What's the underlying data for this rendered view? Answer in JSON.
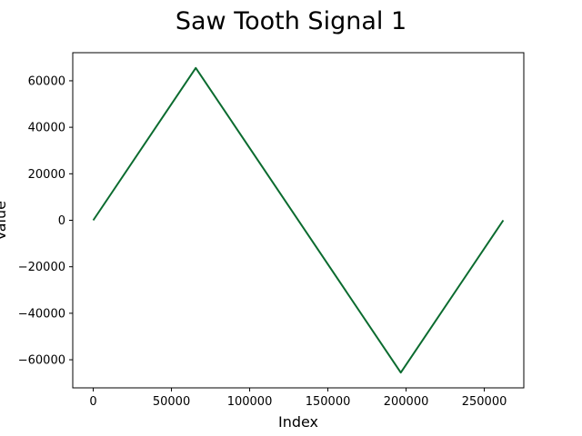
{
  "chart_data": {
    "type": "line",
    "title": "Saw Tooth Signal 1",
    "xlabel": "Index",
    "ylabel": "Value",
    "xlim": [
      -13107,
      275251
    ],
    "ylim": [
      -72089,
      72089
    ],
    "xticks": [
      0,
      50000,
      100000,
      150000,
      200000,
      250000
    ],
    "yticks": [
      -60000,
      -40000,
      -20000,
      0,
      20000,
      40000,
      60000
    ],
    "xtick_labels": [
      "0",
      "50000",
      "100000",
      "150000",
      "200000",
      "250000"
    ],
    "ytick_labels": [
      "−60000",
      "−40000",
      "−20000",
      "0",
      "20000",
      "40000",
      "60000"
    ],
    "grid": false,
    "series": [
      {
        "color": "#0b6b2f",
        "x": [
          0,
          65536,
          196608,
          262144
        ],
        "y": [
          0,
          65536,
          -65536,
          0
        ]
      }
    ]
  }
}
